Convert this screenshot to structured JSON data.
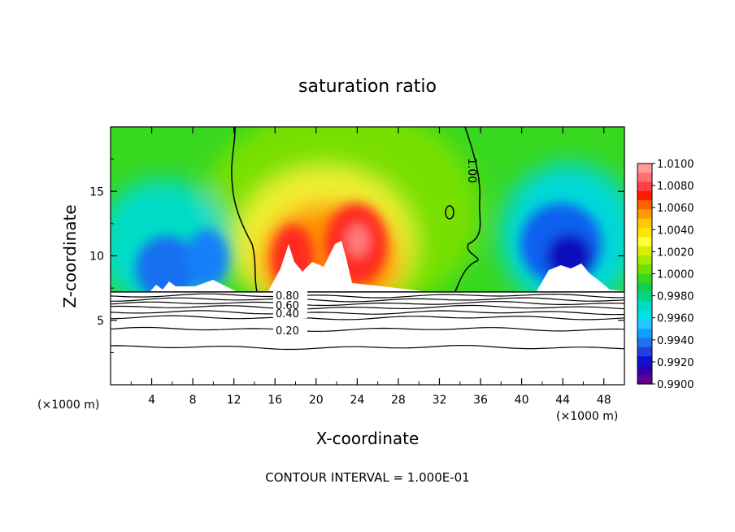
{
  "chart_data": {
    "type": "heatmap",
    "title": "saturation ratio",
    "xlabel": "X-coordinate",
    "ylabel": "Z-coordinate",
    "x_unit_left": "(×1000 m)",
    "x_unit_right": "(×1000 m)",
    "xlim": [
      0,
      50
    ],
    "ylim": [
      0,
      20
    ],
    "x_ticks": [
      4,
      8,
      12,
      16,
      20,
      24,
      28,
      32,
      36,
      40,
      44,
      48
    ],
    "y_ticks": [
      5,
      10,
      15
    ],
    "colorbar": {
      "min": 0.99,
      "max": 1.01,
      "labels": [
        "1.0100",
        "1.0080",
        "1.0060",
        "1.0040",
        "1.0020",
        "1.0000",
        "0.9980",
        "0.9960",
        "0.9940",
        "0.9920",
        "0.9900"
      ],
      "colors": [
        "#ff9a9a",
        "#ff7070",
        "#ff4040",
        "#ff1a00",
        "#ff6000",
        "#ff9a00",
        "#ffc800",
        "#ffe600",
        "#ffff40",
        "#d8f000",
        "#a8ea00",
        "#70e000",
        "#38d820",
        "#10d050",
        "#00d888",
        "#00dcc0",
        "#00e0e8",
        "#20c8ff",
        "#10a0ff",
        "#2070f0",
        "#2040e0",
        "#1010d0",
        "#3000b0",
        "#600090"
      ]
    },
    "contour_labels": [
      "1.00",
      "0.80",
      "0.60",
      "0.40",
      "0.20"
    ],
    "contour_levels_lower": [
      6.9,
      6.6,
      6.3,
      6.0,
      5.6,
      5.2,
      4.3,
      2.9
    ],
    "surface_height": 7.2,
    "footer": "CONTOUR INTERVAL = 1.000E-01"
  },
  "colors": {
    "green": "#38d820",
    "light_green": "#70e000",
    "yellow": "#ffff40",
    "orange": "#ff9a00",
    "red": "#ff2a20",
    "cyan": "#00dcc0",
    "blue": "#1060f0",
    "dark_blue": "#1010c0"
  }
}
